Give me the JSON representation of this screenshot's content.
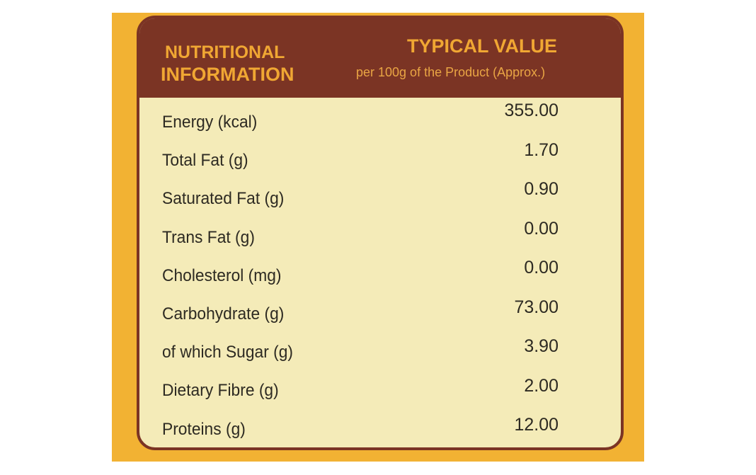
{
  "header": {
    "title_lines": [
      "NUTRITIONAL",
      "INFORMATION"
    ],
    "value_title": "TYPICAL VALUE",
    "value_subtitle": "per 100g of the Product (Approx.)"
  },
  "table": {
    "rows": [
      [
        "Energy (kcal)",
        "355.00"
      ],
      [
        "Total Fat (g)",
        "1.70"
      ],
      [
        "Saturated Fat (g)",
        "0.90"
      ],
      [
        "Trans Fat (g)",
        "0.00"
      ],
      [
        "Cholesterol (mg)",
        "0.00"
      ],
      [
        "Carbohydrate (g)",
        "73.00"
      ],
      [
        "of which Sugar (g)",
        "3.90"
      ],
      [
        "Dietary Fibre (g)",
        "2.00"
      ],
      [
        "Proteins (g)",
        "12.00"
      ]
    ]
  }
}
